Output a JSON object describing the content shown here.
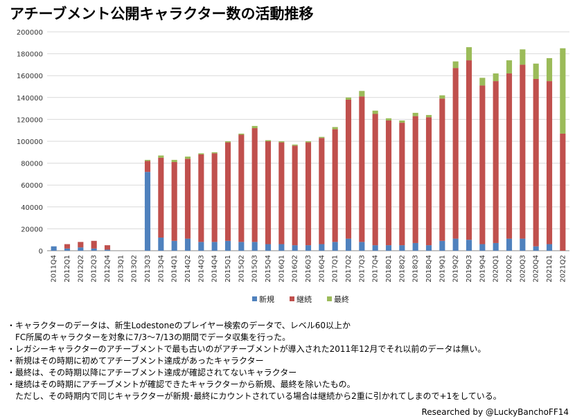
{
  "title": "アチーブメント公開キャラクター数の活動推移",
  "chart_data": {
    "type": "bar",
    "stacked": true,
    "title": "アチーブメント公開キャラクター数の活動推移",
    "categories": [
      "2011Q4",
      "2012Q1",
      "2012Q2",
      "2012Q3",
      "2012Q4",
      "2013Q1",
      "2013Q2",
      "2013Q3",
      "2013Q4",
      "2014Q1",
      "2014Q2",
      "2014Q3",
      "2014Q4",
      "2015Q1",
      "2015Q2",
      "2015Q3",
      "2015Q4",
      "2016Q1",
      "2016Q2",
      "2016Q3",
      "2016Q4",
      "2017Q1",
      "2017Q2",
      "2017Q3",
      "2017Q4",
      "2018Q1",
      "2018Q2",
      "2018Q3",
      "2018Q4",
      "2019Q1",
      "2019Q2",
      "2019Q3",
      "2019Q4",
      "2020Q1",
      "2020Q2",
      "2020Q3",
      "2020Q4",
      "2021Q1",
      "2021Q2"
    ],
    "series": [
      {
        "name": "新規",
        "color": "#4f81bd",
        "values": [
          4000,
          2000,
          3000,
          2000,
          1000,
          0,
          0,
          72000,
          12000,
          9000,
          11000,
          8000,
          8000,
          9000,
          8000,
          8000,
          6000,
          6000,
          5000,
          5000,
          6000,
          8000,
          11000,
          8000,
          5000,
          5000,
          5000,
          7000,
          5000,
          9000,
          11000,
          10000,
          6000,
          7000,
          11000,
          11000,
          4000,
          6000,
          0
        ]
      },
      {
        "name": "継続",
        "color": "#c0504d",
        "values": [
          0,
          4000,
          5000,
          7000,
          4000,
          0,
          0,
          10000,
          73000,
          72000,
          73000,
          80000,
          81000,
          90000,
          98000,
          104000,
          94000,
          93000,
          91000,
          94000,
          97000,
          103000,
          127000,
          133000,
          120000,
          114000,
          112000,
          116000,
          117000,
          130000,
          156000,
          164000,
          145000,
          148000,
          151000,
          159000,
          153000,
          149000,
          107000
        ]
      },
      {
        "name": "最終",
        "color": "#9bbb59",
        "values": [
          0,
          0,
          0,
          0,
          0,
          0,
          0,
          1000,
          2000,
          2000,
          2000,
          1000,
          1000,
          1000,
          1000,
          2000,
          1000,
          1000,
          1000,
          1000,
          1000,
          2000,
          2000,
          5000,
          3000,
          2000,
          2000,
          3000,
          2000,
          3000,
          6000,
          12000,
          7000,
          7000,
          12000,
          14000,
          14000,
          21000,
          78000
        ]
      }
    ],
    "y_ticks": [
      "0",
      "20000",
      "40000",
      "60000",
      "80000",
      "100000",
      "120000",
      "140000",
      "160000",
      "180000",
      "200000"
    ],
    "ylim": [
      0,
      200000
    ],
    "grid": true,
    "legend": "bottom-center",
    "xlabel": "",
    "ylabel": ""
  },
  "notes": [
    "・キャラクターのデータは、新生Lodestoneのプレイヤー検索のデータで、レベル60以上か",
    "FC所属のキャラクターを対象に7/3～7/13の期間でデータ収集を行った。",
    "・レガシーキャラクターのアチーブメントで最も古いのがアチーブメントが導入された2011年12月でそれ以前のデータは無い。",
    "・新規はその時期に初めてアチーブメント達成があったキャラクター",
    "・最終は、その時期以降にアチーブメント達成が確認されてないキャラクター",
    "・継続はその時期にアチーブメントが確認できたキャラクターから新規、最終を除いたもの。",
    "ただし、その時期内で同じキャラクターが新規･最終にカウントされている場合は継続から2重に引かれてしまので+1をしている。"
  ],
  "credit": "Researched by @LuckyBanchoFF14"
}
